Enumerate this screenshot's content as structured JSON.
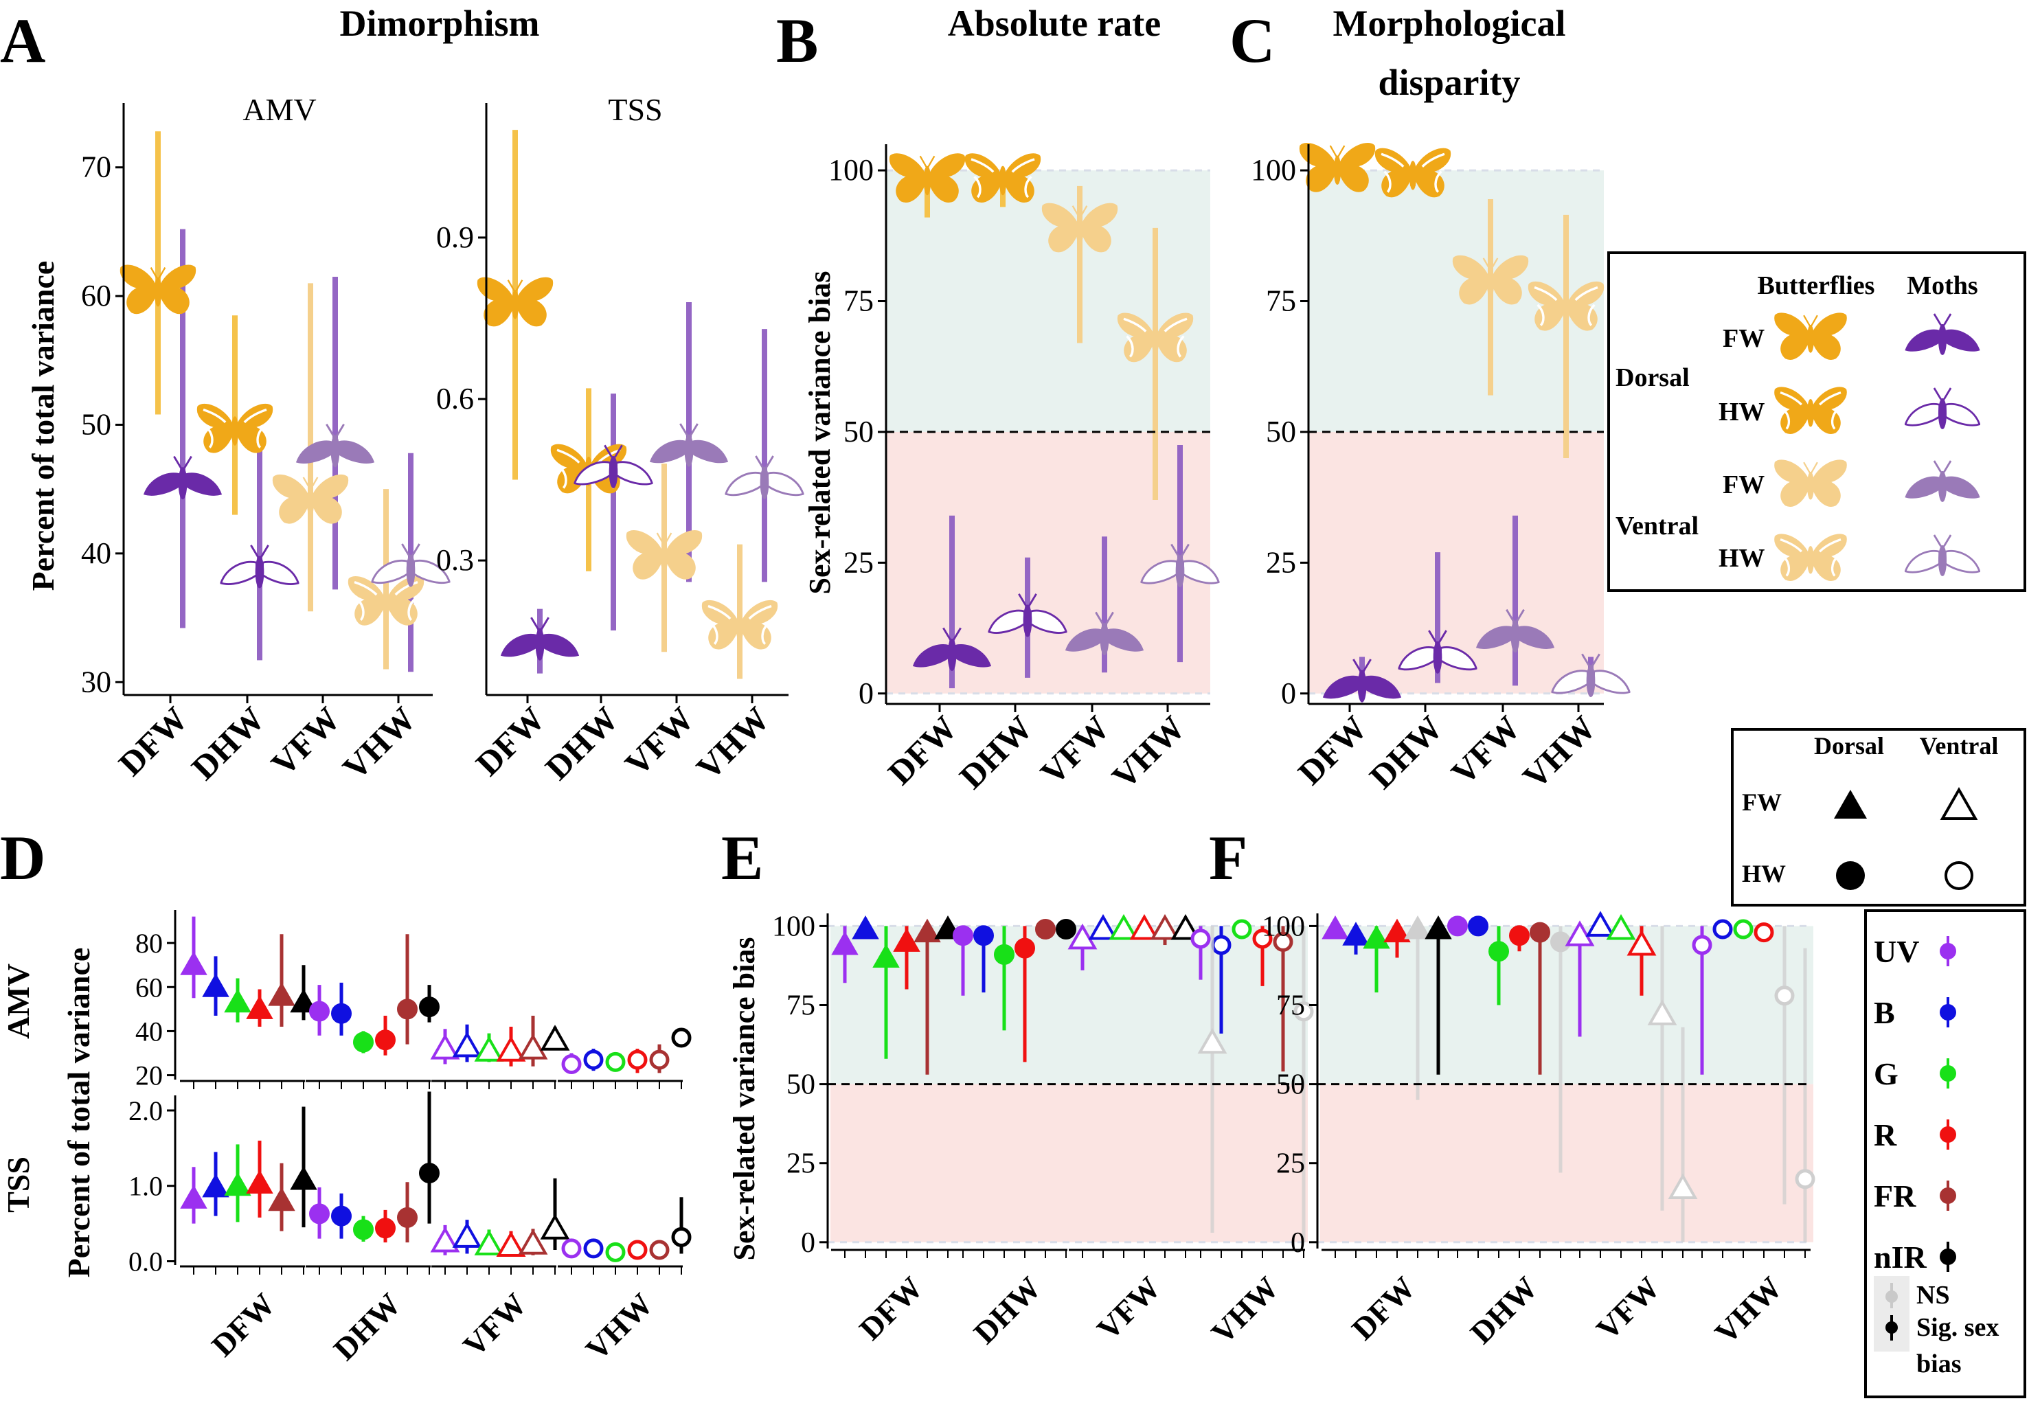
{
  "figure": {
    "panels": [
      {
        "letter": "A",
        "title": "Dimorphism"
      },
      {
        "letter": "B",
        "title": "Absolute rate"
      },
      {
        "letter": "C",
        "title": "Morphological",
        "title2": "disparity"
      },
      {
        "letter": "D"
      },
      {
        "letter": "E"
      },
      {
        "letter": "F"
      }
    ],
    "legend_top": {
      "col_butterflies": "Butterflies",
      "col_moths": "Moths",
      "dorsal": "Dorsal",
      "ventral": "Ventral",
      "fw": "FW",
      "hw": "HW"
    },
    "legend_shape": {
      "dorsal": "Dorsal",
      "ventral": "Ventral",
      "fw": "FW",
      "hw": "HW"
    },
    "legend_bands": {
      "bands": [
        {
          "label": "UV",
          "color": "#9b30f0"
        },
        {
          "label": "B",
          "color": "#1010e0"
        },
        {
          "label": "G",
          "color": "#18e018"
        },
        {
          "label": "R",
          "color": "#f01010"
        },
        {
          "label": "FR",
          "color": "#a83232"
        },
        {
          "label": "nIR",
          "color": "#000000"
        }
      ],
      "ns": "NS",
      "sig1": "Sig. sex",
      "sig2": "bias"
    },
    "colors": {
      "butterfly_dorsal": "#f0a818",
      "butterfly_ventral": "#f5d08c",
      "moth_dorsal": "#6a2aa8",
      "moth_ventral": "#9a7ab8",
      "moth_bar": "#9466c4",
      "butterfly_bar_dorsal": "#f5c24a",
      "butterfly_bar_ventral": "#f5d08c",
      "above_fill": "#e8f2ef",
      "below_fill": "#fbe4e2"
    }
  },
  "chart_data": [
    {
      "panel": "A",
      "type": "scatter",
      "subtitle": "AMV",
      "ylabel": "Percent of total variance",
      "categories": [
        "DFW",
        "DHW",
        "VFW",
        "VHW"
      ],
      "yticks": [
        30,
        40,
        50,
        60,
        70
      ],
      "ylim": [
        29,
        75
      ],
      "series": [
        {
          "group": "butterflies",
          "values": [
            60.5,
            49.7,
            44.2,
            36.3
          ],
          "lo": [
            50.8,
            43,
            35.5,
            31
          ],
          "hi": [
            72.8,
            58.5,
            61,
            45
          ]
        },
        {
          "group": "moths",
          "values": [
            45.7,
            38.8,
            48.2,
            38.9
          ],
          "lo": [
            34.2,
            31.7,
            37.2,
            30.8
          ],
          "hi": [
            65.2,
            48.8,
            61.5,
            47.8
          ]
        }
      ]
    },
    {
      "panel": "A",
      "type": "scatter",
      "subtitle": "TSS",
      "categories": [
        "DFW",
        "DHW",
        "VFW",
        "VHW"
      ],
      "yticks": [
        0.3,
        0.6,
        0.9
      ],
      "ylim": [
        0.05,
        1.15
      ],
      "series": [
        {
          "group": "butterflies",
          "values": [
            0.78,
            0.47,
            0.31,
            0.18
          ],
          "lo": [
            0.45,
            0.28,
            0.13,
            0.08
          ],
          "hi": [
            1.1,
            0.62,
            0.48,
            0.33
          ]
        },
        {
          "group": "moths",
          "values": [
            0.15,
            0.47,
            0.51,
            0.45
          ],
          "lo": [
            0.09,
            0.17,
            0.26,
            0.26
          ],
          "hi": [
            0.21,
            0.61,
            0.78,
            0.73
          ]
        }
      ]
    },
    {
      "panel": "B",
      "type": "scatter",
      "ylabel": "Sex-related variance bias",
      "categories": [
        "DFW",
        "DHW",
        "VFW",
        "VHW"
      ],
      "yticks": [
        0,
        25,
        50,
        75,
        100
      ],
      "ylim": [
        -2,
        105
      ],
      "threshold": 50,
      "series": [
        {
          "group": "butterflies",
          "values": [
            98.5,
            98.5,
            89,
            68
          ],
          "lo": [
            91,
            93,
            67,
            37
          ],
          "hi": [
            100,
            100,
            97,
            89
          ]
        },
        {
          "group": "moths",
          "values": [
            8,
            14.5,
            11,
            24
          ],
          "lo": [
            1,
            3,
            4,
            6
          ],
          "hi": [
            34,
            26,
            30,
            47.5
          ]
        }
      ]
    },
    {
      "panel": "C",
      "type": "scatter",
      "categories": [
        "DFW",
        "DHW",
        "VFW",
        "VHW"
      ],
      "yticks": [
        0,
        25,
        50,
        75,
        100
      ],
      "ylim": [
        -2,
        105
      ],
      "threshold": 50,
      "series": [
        {
          "group": "butterflies",
          "values": [
            100.5,
            99.5,
            79,
            74
          ],
          "lo": [
            98,
            97,
            57,
            45
          ],
          "hi": [
            101,
            101,
            94.5,
            91.5
          ]
        },
        {
          "group": "moths",
          "values": [
            2,
            7.5,
            11.5,
            3
          ],
          "lo": [
            0,
            2,
            1.5,
            0
          ],
          "hi": [
            7,
            27,
            34,
            7
          ]
        }
      ]
    },
    {
      "panel": "D",
      "type": "scatter",
      "ylabel": "Percent of total variance",
      "subtitle": "AMV",
      "groups": [
        "DFW",
        "DHW",
        "VFW",
        "VHW"
      ],
      "bands": [
        "UV",
        "B",
        "G",
        "R",
        "FR",
        "nIR"
      ],
      "yticks": [
        20,
        40,
        60,
        80
      ],
      "ylim": [
        18,
        95
      ],
      "values": [
        [
          70,
          60,
          53,
          50,
          56,
          53
        ],
        [
          49,
          48,
          35,
          36,
          50,
          51
        ],
        [
          32,
          33,
          31,
          31,
          32,
          36
        ],
        [
          25,
          27,
          26,
          27,
          27,
          37
        ]
      ],
      "lo": [
        [
          55,
          47,
          44,
          42,
          42,
          45
        ],
        [
          38,
          38,
          30,
          29,
          34,
          44
        ],
        [
          25,
          26,
          26,
          24,
          24,
          32
        ],
        [
          22,
          22,
          22,
          21,
          21,
          33
        ]
      ],
      "hi": [
        [
          92,
          74,
          64,
          59,
          84,
          70
        ],
        [
          61,
          62,
          40,
          47,
          84,
          61
        ],
        [
          41,
          43,
          39,
          42,
          47,
          42
        ],
        [
          30,
          32,
          30,
          32,
          34,
          41
        ]
      ]
    },
    {
      "panel": "D",
      "type": "scatter",
      "subtitle": "TSS",
      "groups": [
        "DFW",
        "DHW",
        "VFW",
        "VHW"
      ],
      "bands": [
        "UV",
        "B",
        "G",
        "R",
        "FR",
        "nIR"
      ],
      "yticks": [
        0.0,
        1.0,
        2.0
      ],
      "ylim": [
        -0.05,
        2.2
      ],
      "values": [
        [
          0.83,
          0.98,
          1.0,
          1.03,
          0.8,
          1.08
        ],
        [
          0.63,
          0.6,
          0.42,
          0.44,
          0.58,
          1.17
        ],
        [
          0.26,
          0.32,
          0.22,
          0.2,
          0.23,
          0.43
        ],
        [
          0.17,
          0.17,
          0.12,
          0.15,
          0.15,
          0.32
        ]
      ],
      "lo": [
        [
          0.5,
          0.6,
          0.52,
          0.58,
          0.4,
          0.45
        ],
        [
          0.3,
          0.3,
          0.26,
          0.25,
          0.25,
          0.5
        ],
        [
          0.08,
          0.1,
          0.09,
          0.08,
          0.08,
          0.15
        ],
        [
          0.05,
          0.05,
          0.04,
          0.04,
          0.04,
          0.1
        ]
      ],
      "hi": [
        [
          1.25,
          1.45,
          1.55,
          1.6,
          1.3,
          2.05
        ],
        [
          0.98,
          0.9,
          0.6,
          0.68,
          1.05,
          2.25
        ],
        [
          0.48,
          0.55,
          0.42,
          0.4,
          0.43,
          1.1
        ],
        [
          0.28,
          0.28,
          0.22,
          0.28,
          0.28,
          0.85
        ]
      ]
    },
    {
      "panel": "E",
      "type": "scatter",
      "ylabel": "Sex-related variance bias",
      "groups": [
        "DFW",
        "DHW",
        "VFW",
        "VHW"
      ],
      "bands": [
        "UV",
        "B",
        "G",
        "R",
        "FR",
        "nIR"
      ],
      "yticks": [
        0,
        25,
        50,
        75,
        100
      ],
      "ylim": [
        -2,
        104
      ],
      "threshold": 50,
      "values": [
        [
          94,
          99,
          90,
          95,
          98,
          99
        ],
        [
          97,
          97,
          91,
          93,
          99,
          99
        ],
        [
          96,
          99,
          99,
          99,
          99,
          99
        ],
        [
          96,
          94,
          99,
          96,
          95,
          73
        ]
      ],
      "lo": [
        [
          82,
          97,
          58,
          80,
          53,
          97
        ],
        [
          78,
          79,
          67,
          57,
          97,
          97
        ],
        [
          86,
          97,
          97,
          97,
          94,
          97
        ],
        [
          83,
          66,
          97,
          81,
          54,
          0
        ]
      ],
      "hi": [
        [
          100,
          100,
          100,
          100,
          100,
          100
        ],
        [
          100,
          100,
          100,
          100,
          100,
          100
        ],
        [
          100,
          100,
          100,
          100,
          100,
          100
        ],
        [
          100,
          100,
          100,
          100,
          100,
          100
        ]
      ],
      "ns": [
        [
          false,
          false,
          false,
          false,
          false,
          false
        ],
        [
          false,
          false,
          false,
          false,
          false,
          false
        ],
        [
          false,
          false,
          false,
          false,
          false,
          false
        ],
        [
          false,
          false,
          false,
          false,
          false,
          true
        ]
      ],
      "extra_ns": [
        {
          "group": 2,
          "offset": 6.3,
          "value": 63,
          "lo": 3,
          "hi": 100
        }
      ]
    },
    {
      "panel": "F",
      "type": "scatter",
      "groups": [
        "DFW",
        "DHW",
        "VFW",
        "VHW"
      ],
      "bands": [
        "UV",
        "B",
        "G",
        "R",
        "FR",
        "nIR"
      ],
      "yticks": [
        0,
        25,
        50,
        75,
        100
      ],
      "ylim": [
        -2,
        104
      ],
      "threshold": 50,
      "values": [
        [
          99,
          97,
          96,
          98,
          99,
          99
        ],
        [
          100,
          100,
          92,
          97,
          98,
          95
        ],
        [
          97,
          100,
          99,
          94,
          72,
          17
        ],
        [
          94,
          99,
          99,
          98,
          78,
          20
        ]
      ],
      "lo": [
        [
          98,
          91,
          79,
          90,
          45,
          53
        ],
        [
          100,
          100,
          75,
          92,
          53,
          22
        ],
        [
          65,
          99,
          96,
          78,
          10,
          0
        ],
        [
          53,
          98,
          98,
          96,
          12,
          0
        ]
      ],
      "hi": [
        [
          100,
          100,
          100,
          100,
          100,
          100
        ],
        [
          100,
          100,
          100,
          100,
          100,
          100
        ],
        [
          100,
          100,
          100,
          100,
          100,
          68
        ],
        [
          100,
          100,
          100,
          100,
          100,
          93
        ]
      ],
      "ns": [
        [
          false,
          false,
          false,
          false,
          true,
          false
        ],
        [
          false,
          false,
          false,
          false,
          false,
          true
        ],
        [
          false,
          false,
          false,
          false,
          true,
          true
        ],
        [
          false,
          false,
          false,
          false,
          true,
          true
        ]
      ]
    }
  ]
}
